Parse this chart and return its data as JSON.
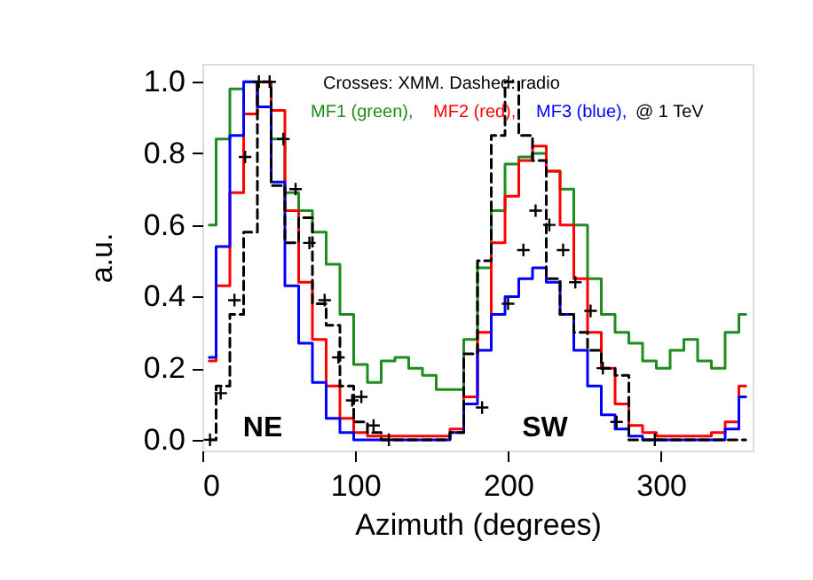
{
  "chart_data": {
    "type": "step",
    "xlabel": "Azimuth (degrees)",
    "ylabel": "a.u.",
    "xlim": [
      0,
      360
    ],
    "ylim": [
      -0.03,
      1.05
    ],
    "xticks": [
      0,
      100,
      200,
      300
    ],
    "yticks": [
      {
        "value": 0,
        "label": "0.0"
      },
      {
        "value": 0.2,
        "label": "0.2"
      },
      {
        "value": 0.4,
        "label": "0.4"
      },
      {
        "value": 0.6,
        "label": "0.6"
      },
      {
        "value": 0.8,
        "label": "0.8"
      },
      {
        "value": 1,
        "label": "1.0"
      }
    ],
    "grid": false,
    "line_style": "solid",
    "x": [
      4.5,
      13.5,
      22.5,
      31.5,
      40.5,
      49.5,
      58.5,
      67.5,
      76.5,
      85.5,
      94.5,
      103.5,
      112.5,
      121.5,
      130.5,
      139.5,
      148.5,
      157.5,
      166.5,
      175.5,
      184.5,
      193.5,
      202.5,
      211.5,
      220.5,
      229.5,
      238.5,
      247.5,
      256.5,
      265.5,
      274.5,
      283.5,
      292.5,
      301.5,
      310.5,
      319.5,
      328.5,
      337.5,
      346.5,
      355.5
    ],
    "series": [
      {
        "name": "MF1 (green),",
        "color": "#1f8c1f",
        "values": [
          0.6,
          0.84,
          0.98,
          1.0,
          0.93,
          0.84,
          0.69,
          0.64,
          0.58,
          0.49,
          0.35,
          0.21,
          0.16,
          0.22,
          0.23,
          0.2,
          0.18,
          0.14,
          0.14,
          0.28,
          0.48,
          0.64,
          0.77,
          0.79,
          0.8,
          0.75,
          0.7,
          0.6,
          0.45,
          0.35,
          0.3,
          0.27,
          0.22,
          0.2,
          0.25,
          0.28,
          0.22,
          0.2,
          0.3,
          0.35
        ]
      },
      {
        "name": "MF2 (red),",
        "color": "#ff0000",
        "values": [
          0.22,
          0.43,
          0.69,
          0.91,
          1.0,
          0.92,
          0.64,
          0.44,
          0.28,
          0.15,
          0.06,
          0.02,
          0.01,
          0.01,
          0.01,
          0.01,
          0.01,
          0.01,
          0.03,
          0.12,
          0.3,
          0.55,
          0.68,
          0.78,
          0.82,
          0.75,
          0.6,
          0.45,
          0.3,
          0.2,
          0.1,
          0.04,
          0.02,
          0.01,
          0.01,
          0.01,
          0.01,
          0.02,
          0.05,
          0.15
        ]
      },
      {
        "name": "MF3 (blue),",
        "color": "#0000ff",
        "values": [
          0.23,
          0.54,
          0.85,
          1.0,
          0.93,
          0.72,
          0.43,
          0.27,
          0.16,
          0.06,
          0.02,
          0.0,
          0.0,
          0.0,
          0.0,
          0.0,
          0.0,
          0.0,
          0.02,
          0.1,
          0.25,
          0.35,
          0.4,
          0.45,
          0.48,
          0.44,
          0.35,
          0.25,
          0.15,
          0.07,
          0.03,
          0.01,
          0.0,
          0.0,
          0.0,
          0.0,
          0.0,
          0.0,
          0.03,
          0.12
        ]
      },
      {
        "color": "#000000",
        "line_style": "dashed",
        "values": [
          0.0,
          0.15,
          0.35,
          0.58,
          1.0,
          0.71,
          0.55,
          0.62,
          0.38,
          0.32,
          0.15,
          0.05,
          0.02,
          0.0,
          0.0,
          0.0,
          0.0,
          0.0,
          0.02,
          0.24,
          0.5,
          0.85,
          1.0,
          0.85,
          0.78,
          0.45,
          0.35,
          0.3,
          0.25,
          0.2,
          0.18,
          0.0,
          0.0,
          0.0,
          0.0,
          0.0,
          0.0,
          0.0,
          0.0,
          0.0
        ]
      },
      {
        "type": "scatter",
        "marker": "cross",
        "color": "#000000",
        "x": [
          5,
          12,
          21,
          28,
          37,
          44,
          53,
          61,
          70,
          80,
          89,
          98,
          104,
          112,
          122,
          183,
          200,
          210,
          218,
          227,
          236,
          244,
          254,
          262,
          271,
          296
        ],
        "values": [
          0.0,
          0.13,
          0.39,
          0.79,
          1.0,
          1.0,
          0.84,
          0.7,
          0.55,
          0.39,
          0.23,
          0.11,
          0.12,
          0.04,
          0.0,
          0.09,
          0.38,
          0.53,
          0.64,
          0.6,
          0.53,
          0.44,
          0.36,
          0.2,
          0.05,
          0.0
        ]
      }
    ],
    "annotations": [
      "Crosses: XMM.  Dashed: radio",
      "@ 1 TeV",
      "NE",
      "SW"
    ]
  }
}
